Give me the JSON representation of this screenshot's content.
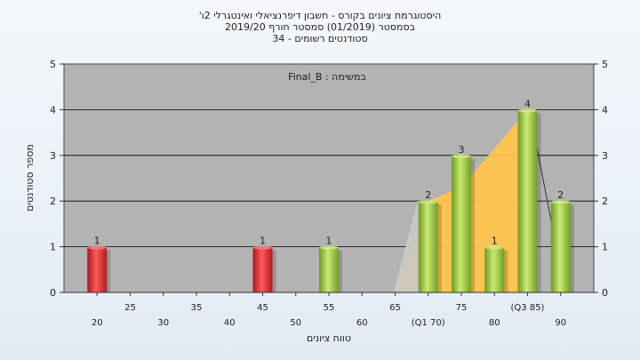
{
  "chart_data": {
    "type": "bar",
    "title_lines": [
      "היסטוגרמת ציונים בקורס - חשבון דיפרנציאלי ואינטגרלי 2ו'",
      "בסמסטר  (01/2019)  סמסטר חורף 2019/20",
      "סטודנטים רשומים - 34"
    ],
    "annotation": "במשימה : Final_B",
    "xlabel": "טווח ציונים",
    "ylabel": "מספר סטודנטים",
    "ylim": [
      0,
      5
    ],
    "yticks": [
      0,
      1,
      2,
      3,
      4,
      5
    ],
    "xlim": [
      15,
      95
    ],
    "xticks_row1": [
      {
        "x": 25,
        "label": "25"
      },
      {
        "x": 35,
        "label": "35"
      },
      {
        "x": 45,
        "label": "45"
      },
      {
        "x": 55,
        "label": "55"
      },
      {
        "x": 65,
        "label": "65"
      },
      {
        "x": 75,
        "label": "75"
      },
      {
        "x": 85,
        "label": "(Q3 85)"
      }
    ],
    "xticks_row2": [
      {
        "x": 20,
        "label": "20"
      },
      {
        "x": 30,
        "label": "30"
      },
      {
        "x": 40,
        "label": "40"
      },
      {
        "x": 50,
        "label": "50"
      },
      {
        "x": 60,
        "label": "60"
      },
      {
        "x": 70,
        "label": "(Q1 70)"
      },
      {
        "x": 80,
        "label": "80"
      },
      {
        "x": 90,
        "label": "90"
      }
    ],
    "bars": [
      {
        "x": 20,
        "value": 1,
        "color": "red"
      },
      {
        "x": 45,
        "value": 1,
        "color": "red"
      },
      {
        "x": 55,
        "value": 1,
        "color": "green"
      },
      {
        "x": 70,
        "value": 2,
        "color": "green"
      },
      {
        "x": 75,
        "value": 3,
        "color": "green"
      },
      {
        "x": 80,
        "value": 1,
        "color": "green"
      },
      {
        "x": 85,
        "value": 4,
        "color": "green"
      },
      {
        "x": 90,
        "value": 2,
        "color": "green"
      }
    ],
    "colors": {
      "plot_bg": "#b3b3b3",
      "red": "#e0262b",
      "green": "#9ccc3c",
      "quartile_area": "#ffc54d",
      "grid": "#000000"
    },
    "grid": true
  }
}
